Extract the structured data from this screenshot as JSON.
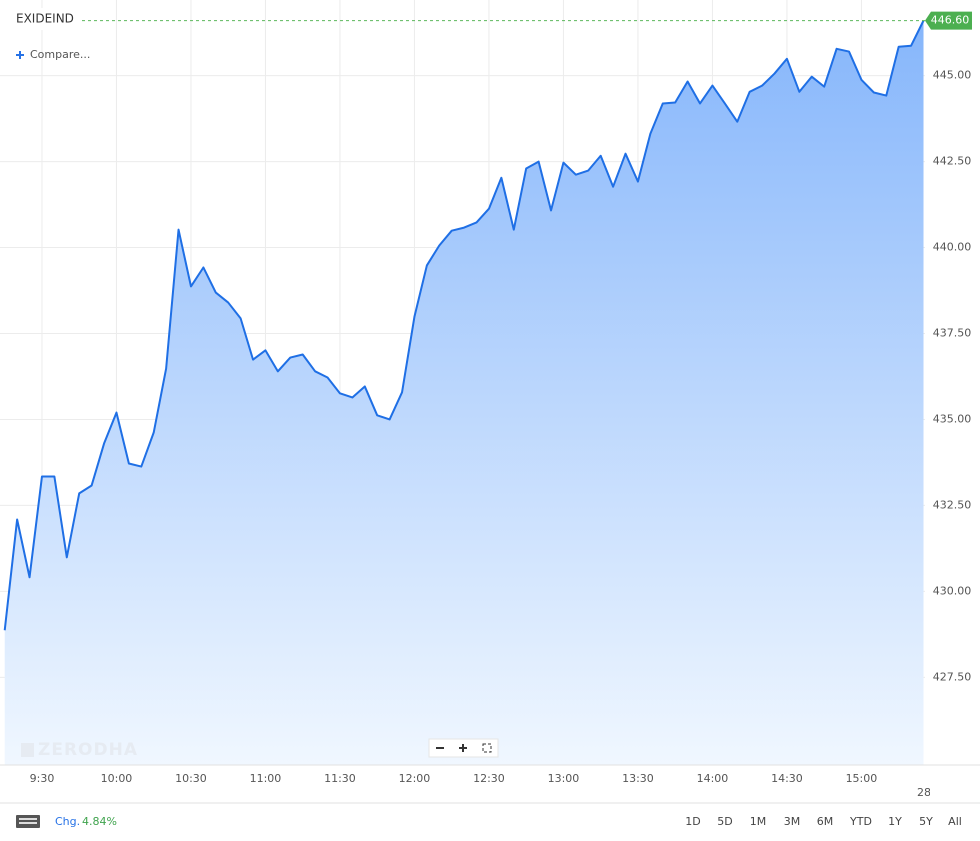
{
  "chart_data": {
    "type": "area",
    "title": "EXIDEIND",
    "color": "#1f6fe5",
    "x": [
      555,
      560,
      565,
      570,
      575,
      580,
      585,
      590,
      595,
      600,
      605,
      610,
      615,
      620,
      625,
      630,
      635,
      640,
      645,
      650,
      655,
      660,
      665,
      670,
      675,
      680,
      685,
      690,
      695,
      700,
      705,
      710,
      715,
      720,
      725,
      730,
      735,
      740,
      745,
      750,
      755,
      760,
      765,
      770,
      775,
      780,
      785,
      790,
      795,
      800,
      805,
      810,
      815,
      820,
      825,
      830,
      835,
      840,
      845,
      850,
      855,
      860,
      865,
      870,
      875,
      880,
      885,
      890,
      895,
      900,
      905,
      910,
      915,
      920,
      925
    ],
    "values": [
      428.87,
      432.09,
      430.41,
      433.34,
      433.34,
      430.99,
      432.85,
      433.08,
      434.3,
      435.2,
      433.72,
      433.63,
      434.62,
      436.48,
      440.52,
      438.87,
      439.42,
      438.69,
      438.4,
      437.94,
      436.74,
      437.01,
      436.4,
      436.8,
      436.89,
      436.4,
      436.22,
      435.76,
      435.64,
      435.96,
      435.12,
      435.0,
      435.79,
      437.99,
      439.48,
      440.06,
      440.49,
      440.58,
      440.73,
      441.13,
      442.03,
      440.52,
      442.3,
      442.5,
      441.08,
      442.47,
      442.12,
      442.24,
      442.67,
      441.77,
      442.73,
      441.92,
      443.31,
      444.19,
      444.22,
      444.83,
      444.19,
      444.71,
      444.19,
      443.66,
      444.53,
      444.71,
      445.06,
      445.49,
      444.53,
      444.97,
      444.68,
      445.78,
      445.7,
      444.88,
      444.51,
      444.42,
      445.84,
      445.87,
      446.6
    ],
    "last_price": {
      "value": 446.6,
      "label": "446.60"
    },
    "xlim": [
      553.1,
      925.6
    ],
    "xticks": [
      {
        "value": 570,
        "label": "9:30"
      },
      {
        "value": 600,
        "label": "10:00"
      },
      {
        "value": 630,
        "label": "10:30"
      },
      {
        "value": 660,
        "label": "11:00"
      },
      {
        "value": 690,
        "label": "11:30"
      },
      {
        "value": 720,
        "label": "12:00"
      },
      {
        "value": 750,
        "label": "12:30"
      },
      {
        "value": 780,
        "label": "13:00"
      },
      {
        "value": 810,
        "label": "13:30"
      },
      {
        "value": 840,
        "label": "14:00"
      },
      {
        "value": 870,
        "label": "14:30"
      },
      {
        "value": 900,
        "label": "15:00"
      }
    ],
    "ylim": [
      424.95,
      447.2
    ],
    "yticks": [
      {
        "value": 427.5,
        "label": "427.50"
      },
      {
        "value": 430,
        "label": "430.00"
      },
      {
        "value": 432.5,
        "label": "432.50"
      },
      {
        "value": 435,
        "label": "435.00"
      },
      {
        "value": 437.5,
        "label": "437.50"
      },
      {
        "value": 440,
        "label": "440.00"
      },
      {
        "value": 442.5,
        "label": "442.50"
      },
      {
        "value": 445,
        "label": "445.00"
      }
    ],
    "grid": true
  },
  "ui": {
    "compare": "Compare...",
    "watermark": "ZERODHA",
    "date_label": "28",
    "change_label": "Chg.",
    "change": "4.84%",
    "ranges": [
      "1D",
      "5D",
      "1M",
      "3M",
      "6M",
      "YTD",
      "1Y",
      "5Y",
      "All"
    ]
  }
}
